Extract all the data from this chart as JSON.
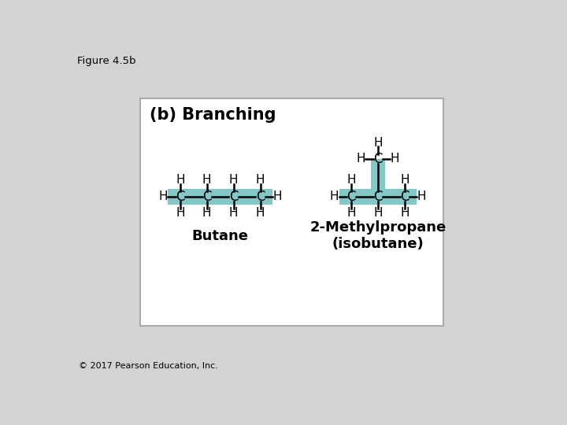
{
  "figure_label": "Figure 4.5b",
  "title": "(b) Branching",
  "copyright": "© 2017 Pearson Education, Inc.",
  "background_outer": "#d3d3d3",
  "background_inner": "#ffffff",
  "border_color": "#aaaaaa",
  "teal_color": "#6dbdbd",
  "text_color": "#000000",
  "butane_label": "Butane",
  "isobutane_label": "2-Methylpropane\n(isobutane)"
}
